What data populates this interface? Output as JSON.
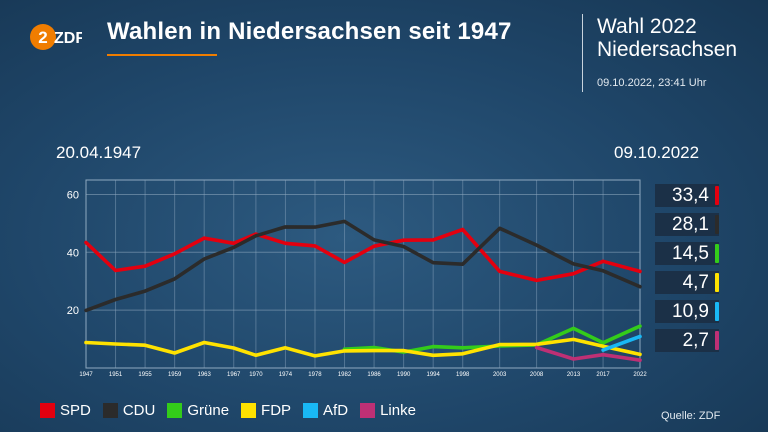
{
  "header": {
    "logo_text": "ZDF",
    "title": "Wahlen in Niedersachsen seit 1947",
    "subtitle_line1": "Wahl 2022",
    "subtitle_line2": "Niedersachsen",
    "timestamp": "09.10.2022, 23:41 Uhr"
  },
  "dates": {
    "start": "20.04.1947",
    "end": "09.10.2022"
  },
  "chart_data": {
    "type": "line",
    "title": "Wahlen in Niedersachsen seit 1947",
    "xlabel": "",
    "ylabel": "",
    "ylim": [
      0,
      65
    ],
    "yticks": [
      20,
      40,
      60
    ],
    "grid": true,
    "legend": "bottom",
    "x": [
      "1947",
      "1951",
      "1955",
      "1959",
      "1963",
      "1967",
      "1970",
      "1974",
      "1978",
      "1982",
      "1986",
      "1990",
      "1994",
      "1998",
      "2003",
      "2008",
      "2013",
      "2017",
      "2022"
    ],
    "series": [
      {
        "name": "SPD",
        "color": "#e3000f",
        "values": [
          43.4,
          33.7,
          35.2,
          39.5,
          44.9,
          43.1,
          46.3,
          43.1,
          42.2,
          36.5,
          42.1,
          44.2,
          44.3,
          47.9,
          33.4,
          30.3,
          32.6,
          36.9,
          33.4
        ]
      },
      {
        "name": "CDU",
        "color": "#2b2b2b",
        "values": [
          19.9,
          23.7,
          26.6,
          30.8,
          37.7,
          41.7,
          45.7,
          48.8,
          48.7,
          50.7,
          44.3,
          42.0,
          36.4,
          35.9,
          48.3,
          42.5,
          36.0,
          33.6,
          28.1
        ]
      },
      {
        "name": "Grüne",
        "color": "#33cc1a",
        "values": [
          null,
          null,
          null,
          null,
          null,
          null,
          null,
          null,
          null,
          6.5,
          7.1,
          5.5,
          7.4,
          7.0,
          7.6,
          8.0,
          13.7,
          8.7,
          14.5
        ]
      },
      {
        "name": "FDP",
        "color": "#ffe200",
        "values": [
          8.8,
          8.3,
          7.9,
          5.2,
          8.8,
          6.9,
          4.4,
          7.0,
          4.2,
          5.9,
          6.0,
          6.0,
          4.4,
          4.9,
          8.1,
          8.2,
          9.9,
          7.5,
          4.7
        ]
      },
      {
        "name": "AfD",
        "color": "#19b8f5",
        "values": [
          null,
          null,
          null,
          null,
          null,
          null,
          null,
          null,
          null,
          null,
          null,
          null,
          null,
          null,
          null,
          null,
          null,
          6.2,
          10.9
        ]
      },
      {
        "name": "Linke",
        "color": "#be3075",
        "values": [
          null,
          null,
          null,
          null,
          null,
          null,
          null,
          null,
          null,
          null,
          null,
          null,
          null,
          null,
          null,
          7.1,
          3.1,
          4.6,
          2.7
        ]
      }
    ],
    "results_2022": [
      {
        "party": "SPD",
        "label": "33,4",
        "color": "#e3000f"
      },
      {
        "party": "CDU",
        "label": "28,1",
        "color": "#2b2b2b"
      },
      {
        "party": "Grüne",
        "label": "14,5",
        "color": "#33cc1a"
      },
      {
        "party": "FDP",
        "label": "4,7",
        "color": "#ffe200"
      },
      {
        "party": "AfD",
        "label": "10,9",
        "color": "#19b8f5"
      },
      {
        "party": "Linke",
        "label": "2,7",
        "color": "#be3075"
      }
    ]
  },
  "legend": [
    {
      "label": "SPD",
      "color": "#e3000f"
    },
    {
      "label": "CDU",
      "color": "#2b2b2b"
    },
    {
      "label": "Grüne",
      "color": "#33cc1a"
    },
    {
      "label": "FDP",
      "color": "#ffe200"
    },
    {
      "label": "AfD",
      "color": "#19b8f5"
    },
    {
      "label": "Linke",
      "color": "#be3075"
    }
  ],
  "source": "Quelle: ZDF"
}
